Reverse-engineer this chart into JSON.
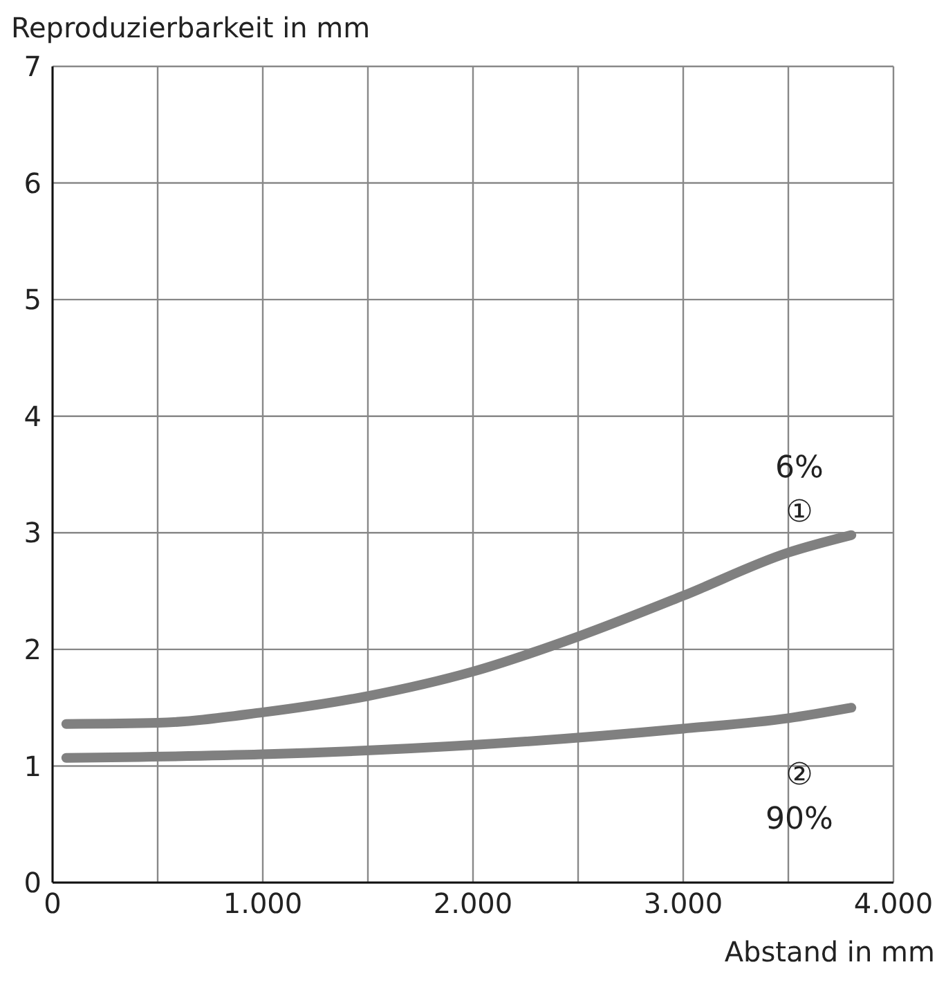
{
  "chart_data": {
    "type": "line",
    "xlabel": "Abstand in mm",
    "ylabel": "Reproduzierbarkeit in mm",
    "xlim": [
      0,
      4000
    ],
    "ylim": [
      0,
      7
    ],
    "xticks": [
      0,
      {
        "value": 500,
        "label": null
      },
      {
        "value": 1000,
        "label": "1.000"
      },
      {
        "value": 1500,
        "label": null
      },
      {
        "value": 2000,
        "label": "2.000"
      },
      {
        "value": 2500,
        "label": null
      },
      {
        "value": 3000,
        "label": "3.000"
      },
      {
        "value": 3500,
        "label": null
      },
      {
        "value": 4000,
        "label": "4.000"
      }
    ],
    "yticks": [
      0,
      1,
      2,
      3,
      4,
      5,
      6,
      7
    ],
    "grid": true,
    "marker": "none",
    "line_style": "solid",
    "series": [
      {
        "color": "#808080",
        "x": [
          65,
          500,
          1000,
          1500,
          2000,
          2500,
          3000,
          3500,
          3800
        ],
        "values": [
          1.36,
          1.37,
          1.46,
          1.6,
          1.81,
          2.11,
          2.46,
          2.83,
          2.98
        ]
      },
      {
        "color": "#808080",
        "x": [
          65,
          1000,
          2000,
          3000,
          3500,
          3800
        ],
        "values": [
          1.07,
          1.1,
          1.18,
          1.32,
          1.41,
          1.5
        ]
      }
    ],
    "annotations": [
      "6%",
      "①",
      "②",
      "90%"
    ]
  }
}
